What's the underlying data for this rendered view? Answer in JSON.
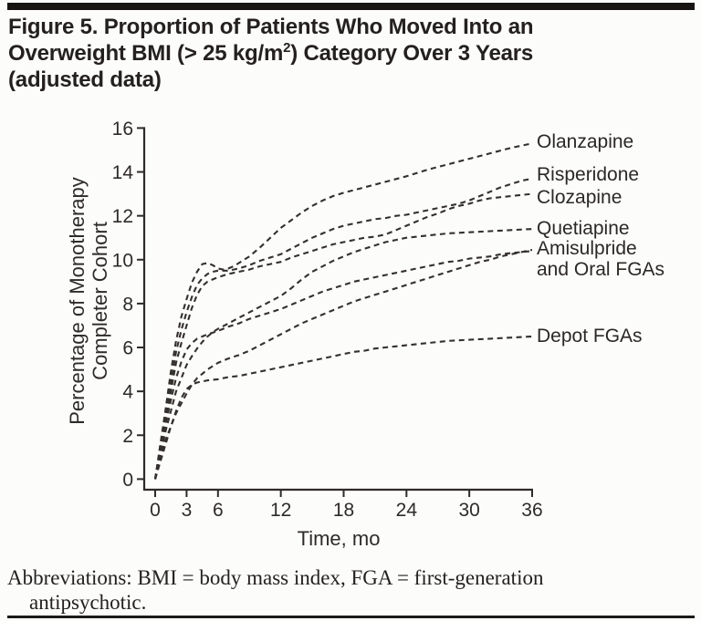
{
  "figure": {
    "title_line1": "Figure 5. Proportion of Patients Who Moved Into an",
    "title_line2_pre": "Overweight BMI (> 25 kg/m",
    "title_line2_sup": "2",
    "title_line2_post": ") Category Over 3 Years",
    "title_line3": "(adjusted data)",
    "footnote_line1": "Abbreviations: BMI = body mass index, FGA = first-generation",
    "footnote_line2": "antipsychotic."
  },
  "chart_data": {
    "type": "line",
    "title": "Figure 5. Proportion of Patients Who Moved Into an Overweight BMI (> 25 kg/m2) Category Over 3 Years (adjusted data)",
    "xlabel": "Time, mo",
    "ylabel": "Percentage of Monotherapy Completer Cohort",
    "ylabel_lines": [
      "Percentage of Monotherapy",
      "Completer Cohort"
    ],
    "xlim": [
      0,
      36
    ],
    "ylim": [
      0,
      16
    ],
    "x_ticks": [
      0,
      3,
      6,
      12,
      18,
      24,
      30,
      36
    ],
    "y_ticks": [
      0,
      2,
      4,
      6,
      8,
      10,
      12,
      14,
      16
    ],
    "grid": false,
    "line_style": "dashed",
    "ink_color": "#34302e",
    "background_color": "#fcfcfa",
    "legend_position": "right-edge annotations",
    "series": [
      {
        "name": "Olanzapine",
        "label": "Olanzapine",
        "points": [
          [
            0,
            0
          ],
          [
            0.5,
            1.6
          ],
          [
            1,
            3.2
          ],
          [
            1.5,
            4.9
          ],
          [
            2,
            6.3
          ],
          [
            2.5,
            7.4
          ],
          [
            3,
            8.2
          ],
          [
            3.5,
            8.95
          ],
          [
            4,
            9.45
          ],
          [
            4.5,
            9.8
          ],
          [
            5,
            9.85
          ],
          [
            5.5,
            9.75
          ],
          [
            6,
            9.6
          ],
          [
            6.5,
            9.55
          ],
          [
            7,
            9.6
          ],
          [
            7.5,
            9.7
          ],
          [
            8,
            9.85
          ],
          [
            9,
            10.15
          ],
          [
            10,
            10.55
          ],
          [
            11,
            11.0
          ],
          [
            12,
            11.45
          ],
          [
            13,
            11.8
          ],
          [
            14,
            12.15
          ],
          [
            15,
            12.45
          ],
          [
            16,
            12.7
          ],
          [
            17,
            12.9
          ],
          [
            18,
            13.05
          ],
          [
            20,
            13.3
          ],
          [
            22,
            13.55
          ],
          [
            24,
            13.8
          ],
          [
            26,
            14.1
          ],
          [
            28,
            14.35
          ],
          [
            30,
            14.6
          ],
          [
            32,
            14.85
          ],
          [
            34,
            15.1
          ],
          [
            36,
            15.3
          ]
        ]
      },
      {
        "name": "Risperidone",
        "label": "Risperidone",
        "points": [
          [
            0,
            0
          ],
          [
            0.5,
            1.45
          ],
          [
            1,
            2.9
          ],
          [
            1.5,
            4.4
          ],
          [
            2,
            5.8
          ],
          [
            2.5,
            6.8
          ],
          [
            3,
            7.6
          ],
          [
            3.5,
            8.3
          ],
          [
            4,
            8.85
          ],
          [
            4.5,
            9.15
          ],
          [
            5,
            9.35
          ],
          [
            5.5,
            9.45
          ],
          [
            6,
            9.5
          ],
          [
            7,
            9.5
          ],
          [
            8,
            9.6
          ],
          [
            9,
            9.75
          ],
          [
            10,
            9.95
          ],
          [
            11,
            10.1
          ],
          [
            12,
            10.25
          ],
          [
            13,
            10.5
          ],
          [
            14,
            10.75
          ],
          [
            15,
            11.0
          ],
          [
            16,
            11.2
          ],
          [
            17,
            11.4
          ],
          [
            18,
            11.55
          ],
          [
            19,
            11.65
          ],
          [
            20,
            11.75
          ],
          [
            21,
            11.85
          ],
          [
            22,
            11.9
          ],
          [
            23,
            12.0
          ],
          [
            24,
            12.05
          ],
          [
            25,
            12.15
          ],
          [
            26,
            12.25
          ],
          [
            27,
            12.35
          ],
          [
            28,
            12.45
          ],
          [
            29,
            12.55
          ],
          [
            30,
            12.7
          ],
          [
            31,
            12.9
          ],
          [
            32,
            13.1
          ],
          [
            33,
            13.3
          ],
          [
            34,
            13.45
          ],
          [
            35,
            13.6
          ],
          [
            36,
            13.7
          ]
        ]
      },
      {
        "name": "Clozapine",
        "label": "Clozapine",
        "points": [
          [
            0,
            0
          ],
          [
            0.5,
            1.35
          ],
          [
            1,
            2.7
          ],
          [
            1.5,
            4.0
          ],
          [
            2,
            5.3
          ],
          [
            2.5,
            6.2
          ],
          [
            3,
            7.0
          ],
          [
            3.5,
            7.8
          ],
          [
            4,
            8.4
          ],
          [
            4.5,
            8.8
          ],
          [
            5,
            9.0
          ],
          [
            5.5,
            9.1
          ],
          [
            6,
            9.2
          ],
          [
            7,
            9.35
          ],
          [
            8,
            9.45
          ],
          [
            9,
            9.55
          ],
          [
            10,
            9.7
          ],
          [
            11,
            9.8
          ],
          [
            12,
            9.9
          ],
          [
            13,
            10.1
          ],
          [
            14,
            10.25
          ],
          [
            15,
            10.4
          ],
          [
            16,
            10.55
          ],
          [
            17,
            10.7
          ],
          [
            18,
            10.8
          ],
          [
            19,
            10.9
          ],
          [
            20,
            11.0
          ],
          [
            21,
            11.05
          ],
          [
            22,
            11.15
          ],
          [
            23,
            11.35
          ],
          [
            24,
            11.55
          ],
          [
            25,
            11.75
          ],
          [
            26,
            11.95
          ],
          [
            27,
            12.1
          ],
          [
            28,
            12.3
          ],
          [
            29,
            12.45
          ],
          [
            30,
            12.55
          ],
          [
            31,
            12.7
          ],
          [
            32,
            12.8
          ],
          [
            33,
            12.85
          ],
          [
            34,
            12.9
          ],
          [
            35,
            12.95
          ],
          [
            36,
            13.0
          ]
        ]
      },
      {
        "name": "Quetiapine",
        "label": "Quetiapine",
        "points": [
          [
            0,
            0
          ],
          [
            0.5,
            1.1
          ],
          [
            1,
            2.2
          ],
          [
            1.5,
            3.1
          ],
          [
            2,
            4.0
          ],
          [
            2.5,
            4.6
          ],
          [
            3,
            5.2
          ],
          [
            3.5,
            5.6
          ],
          [
            4,
            5.95
          ],
          [
            4.5,
            6.25
          ],
          [
            5,
            6.5
          ],
          [
            5.5,
            6.7
          ],
          [
            6,
            6.85
          ],
          [
            7,
            7.1
          ],
          [
            8,
            7.35
          ],
          [
            9,
            7.6
          ],
          [
            10,
            7.85
          ],
          [
            11,
            8.1
          ],
          [
            12,
            8.35
          ],
          [
            13,
            8.7
          ],
          [
            14,
            9.1
          ],
          [
            15,
            9.45
          ],
          [
            16,
            9.7
          ],
          [
            17,
            9.95
          ],
          [
            18,
            10.15
          ],
          [
            19,
            10.35
          ],
          [
            20,
            10.5
          ],
          [
            21,
            10.65
          ],
          [
            22,
            10.8
          ],
          [
            23,
            10.9
          ],
          [
            24,
            11.0
          ],
          [
            26,
            11.1
          ],
          [
            28,
            11.2
          ],
          [
            30,
            11.25
          ],
          [
            32,
            11.3
          ],
          [
            34,
            11.35
          ],
          [
            36,
            11.4
          ]
        ]
      },
      {
        "name": "Amisulpride and Oral FGAs (curve 1)",
        "label_line1": "Amisulpride",
        "label_line2": "and Oral FGAs",
        "points": [
          [
            0,
            0
          ],
          [
            0.5,
            1.25
          ],
          [
            1,
            2.5
          ],
          [
            1.5,
            3.6
          ],
          [
            2,
            4.6
          ],
          [
            2.5,
            5.35
          ],
          [
            3,
            5.9
          ],
          [
            3.5,
            6.2
          ],
          [
            4,
            6.4
          ],
          [
            4.5,
            6.5
          ],
          [
            5,
            6.6
          ],
          [
            6,
            6.75
          ],
          [
            7,
            6.95
          ],
          [
            8,
            7.1
          ],
          [
            9,
            7.3
          ],
          [
            10,
            7.45
          ],
          [
            11,
            7.6
          ],
          [
            12,
            7.75
          ],
          [
            13,
            7.95
          ],
          [
            14,
            8.15
          ],
          [
            15,
            8.35
          ],
          [
            16,
            8.55
          ],
          [
            17,
            8.7
          ],
          [
            18,
            8.85
          ],
          [
            19,
            9.0
          ],
          [
            20,
            9.1
          ],
          [
            21,
            9.2
          ],
          [
            22,
            9.3
          ],
          [
            23,
            9.4
          ],
          [
            24,
            9.5
          ],
          [
            25,
            9.6
          ],
          [
            26,
            9.7
          ],
          [
            27,
            9.8
          ],
          [
            28,
            9.9
          ],
          [
            29,
            9.95
          ],
          [
            30,
            10.05
          ],
          [
            31,
            10.1
          ],
          [
            32,
            10.15
          ],
          [
            33,
            10.25
          ],
          [
            34,
            10.3
          ],
          [
            35,
            10.35
          ],
          [
            36,
            10.4
          ]
        ]
      },
      {
        "name": "Amisulpride and Oral FGAs (curve 2)",
        "points": [
          [
            0,
            0
          ],
          [
            0.5,
            0.9
          ],
          [
            1,
            1.8
          ],
          [
            1.5,
            2.4
          ],
          [
            2,
            3.0
          ],
          [
            2.5,
            3.45
          ],
          [
            3,
            3.9
          ],
          [
            3.5,
            4.3
          ],
          [
            4,
            4.6
          ],
          [
            4.5,
            4.8
          ],
          [
            5,
            5.0
          ],
          [
            5.5,
            5.15
          ],
          [
            6,
            5.3
          ],
          [
            7,
            5.5
          ],
          [
            8,
            5.65
          ],
          [
            9,
            5.85
          ],
          [
            10,
            6.1
          ],
          [
            11,
            6.35
          ],
          [
            12,
            6.6
          ],
          [
            13,
            6.85
          ],
          [
            14,
            7.1
          ],
          [
            15,
            7.3
          ],
          [
            16,
            7.5
          ],
          [
            17,
            7.7
          ],
          [
            18,
            7.9
          ],
          [
            19,
            8.1
          ],
          [
            20,
            8.25
          ],
          [
            21,
            8.4
          ],
          [
            22,
            8.55
          ],
          [
            23,
            8.7
          ],
          [
            24,
            8.85
          ],
          [
            25,
            9.0
          ],
          [
            26,
            9.15
          ],
          [
            27,
            9.3
          ],
          [
            28,
            9.45
          ],
          [
            29,
            9.6
          ],
          [
            30,
            9.75
          ],
          [
            31,
            9.9
          ],
          [
            32,
            10.0
          ],
          [
            33,
            10.15
          ],
          [
            34,
            10.25
          ],
          [
            35,
            10.35
          ],
          [
            36,
            10.45
          ]
        ]
      },
      {
        "name": "Depot FGAs",
        "label": "Depot FGAs",
        "points": [
          [
            0,
            0
          ],
          [
            0.5,
            0.8
          ],
          [
            1,
            1.6
          ],
          [
            1.5,
            2.4
          ],
          [
            2,
            3.1
          ],
          [
            2.5,
            3.7
          ],
          [
            3,
            4.1
          ],
          [
            3.5,
            4.3
          ],
          [
            4,
            4.4
          ],
          [
            5,
            4.5
          ],
          [
            6,
            4.55
          ],
          [
            7,
            4.65
          ],
          [
            8,
            4.7
          ],
          [
            9,
            4.8
          ],
          [
            10,
            4.9
          ],
          [
            11,
            5.0
          ],
          [
            12,
            5.1
          ],
          [
            13,
            5.2
          ],
          [
            14,
            5.3
          ],
          [
            15,
            5.4
          ],
          [
            16,
            5.5
          ],
          [
            17,
            5.6
          ],
          [
            18,
            5.7
          ],
          [
            19,
            5.8
          ],
          [
            20,
            5.85
          ],
          [
            21,
            5.95
          ],
          [
            22,
            6.0
          ],
          [
            23,
            6.05
          ],
          [
            24,
            6.1
          ],
          [
            25,
            6.15
          ],
          [
            26,
            6.2
          ],
          [
            27,
            6.25
          ],
          [
            28,
            6.3
          ],
          [
            30,
            6.35
          ],
          [
            32,
            6.4
          ],
          [
            34,
            6.45
          ],
          [
            36,
            6.5
          ]
        ]
      }
    ]
  }
}
